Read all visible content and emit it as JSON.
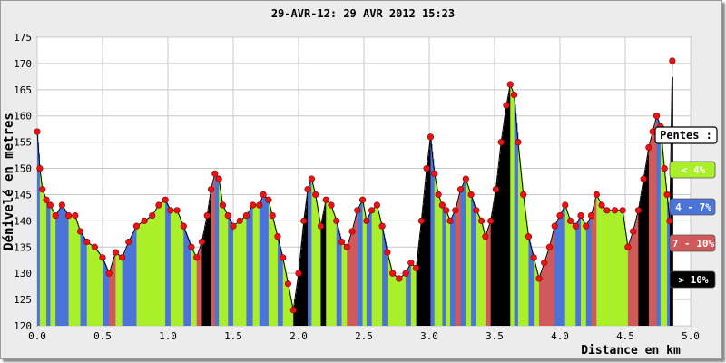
{
  "chart_data": {
    "type": "area",
    "title": "29-AVR-12: 29 AVR 2012 15:23",
    "xlabel": "Distance en km",
    "ylabel": "Dénivelé en metres",
    "xlim": [
      0,
      5
    ],
    "ylim": [
      120,
      175
    ],
    "x_ticks": [
      "0.0",
      "0.5",
      "1.0",
      "1.5",
      "2.0",
      "2.5",
      "3.0",
      "3.5",
      "4.0",
      "4.5",
      "5.0"
    ],
    "y_ticks": [
      "120",
      "125",
      "130",
      "135",
      "140",
      "145",
      "150",
      "155",
      "160",
      "165",
      "170",
      "175"
    ],
    "grid": true,
    "legend_position": "right",
    "legend": {
      "title": "Pentes :",
      "items": [
        {
          "label": "< 4%",
          "color": "#aaf02a",
          "text_color": "#ffffff"
        },
        {
          "label": "4 - 7%",
          "color": "#4a74d8",
          "text_color": "#ffffff"
        },
        {
          "label": "7 - 10%",
          "color": "#d05a5a",
          "text_color": "#ffffff"
        },
        {
          "label": "> 10%",
          "color": "#000000",
          "text_color": "#ffffff"
        }
      ]
    },
    "marker_color": "#ee1111",
    "profile": [
      [
        0.0,
        157
      ],
      [
        0.02,
        150
      ],
      [
        0.04,
        146
      ],
      [
        0.07,
        144
      ],
      [
        0.1,
        143
      ],
      [
        0.14,
        141
      ],
      [
        0.19,
        143
      ],
      [
        0.24,
        141
      ],
      [
        0.29,
        141
      ],
      [
        0.33,
        138
      ],
      [
        0.38,
        136
      ],
      [
        0.44,
        135
      ],
      [
        0.5,
        133
      ],
      [
        0.55,
        130
      ],
      [
        0.6,
        134
      ],
      [
        0.65,
        133
      ],
      [
        0.7,
        136
      ],
      [
        0.76,
        139
      ],
      [
        0.82,
        140
      ],
      [
        0.88,
        141
      ],
      [
        0.93,
        143
      ],
      [
        0.98,
        144
      ],
      [
        1.02,
        142
      ],
      [
        1.07,
        142
      ],
      [
        1.12,
        139
      ],
      [
        1.18,
        135
      ],
      [
        1.22,
        133
      ],
      [
        1.26,
        136
      ],
      [
        1.3,
        141
      ],
      [
        1.33,
        146
      ],
      [
        1.36,
        149
      ],
      [
        1.39,
        148
      ],
      [
        1.42,
        143
      ],
      [
        1.46,
        141
      ],
      [
        1.5,
        139
      ],
      [
        1.55,
        140
      ],
      [
        1.6,
        141
      ],
      [
        1.65,
        143
      ],
      [
        1.7,
        143
      ],
      [
        1.73,
        145
      ],
      [
        1.77,
        144
      ],
      [
        1.8,
        141
      ],
      [
        1.84,
        137
      ],
      [
        1.88,
        133
      ],
      [
        1.92,
        128
      ],
      [
        1.96,
        123
      ],
      [
        2.0,
        130
      ],
      [
        2.04,
        140
      ],
      [
        2.07,
        146
      ],
      [
        2.1,
        148
      ],
      [
        2.13,
        145
      ],
      [
        2.17,
        139
      ],
      [
        2.21,
        144
      ],
      [
        2.25,
        143
      ],
      [
        2.29,
        140
      ],
      [
        2.33,
        136
      ],
      [
        2.37,
        135
      ],
      [
        2.41,
        138
      ],
      [
        2.45,
        142
      ],
      [
        2.49,
        144
      ],
      [
        2.52,
        140
      ],
      [
        2.56,
        142
      ],
      [
        2.6,
        143
      ],
      [
        2.64,
        139
      ],
      [
        2.68,
        134
      ],
      [
        2.72,
        130
      ],
      [
        2.77,
        129
      ],
      [
        2.82,
        130
      ],
      [
        2.86,
        132
      ],
      [
        2.9,
        131
      ],
      [
        2.94,
        140
      ],
      [
        2.98,
        150
      ],
      [
        3.01,
        156
      ],
      [
        3.04,
        149
      ],
      [
        3.07,
        145
      ],
      [
        3.1,
        143
      ],
      [
        3.13,
        142
      ],
      [
        3.16,
        140
      ],
      [
        3.2,
        142
      ],
      [
        3.24,
        146
      ],
      [
        3.28,
        148
      ],
      [
        3.32,
        145
      ],
      [
        3.36,
        142
      ],
      [
        3.4,
        140
      ],
      [
        3.43,
        137
      ],
      [
        3.47,
        140
      ],
      [
        3.51,
        146
      ],
      [
        3.55,
        155
      ],
      [
        3.59,
        162
      ],
      [
        3.62,
        166
      ],
      [
        3.65,
        164
      ],
      [
        3.68,
        155
      ],
      [
        3.72,
        145
      ],
      [
        3.76,
        137
      ],
      [
        3.8,
        133
      ],
      [
        3.84,
        129
      ],
      [
        3.88,
        132
      ],
      [
        3.92,
        135
      ],
      [
        3.96,
        139
      ],
      [
        4.0,
        141
      ],
      [
        4.04,
        143
      ],
      [
        4.08,
        140
      ],
      [
        4.12,
        139
      ],
      [
        4.16,
        141
      ],
      [
        4.2,
        139
      ],
      [
        4.24,
        141
      ],
      [
        4.28,
        145
      ],
      [
        4.32,
        143
      ],
      [
        4.36,
        142
      ],
      [
        4.42,
        142
      ],
      [
        4.48,
        142
      ],
      [
        4.52,
        135
      ],
      [
        4.56,
        138
      ],
      [
        4.6,
        142
      ],
      [
        4.64,
        148
      ],
      [
        4.68,
        154
      ],
      [
        4.71,
        157
      ],
      [
        4.74,
        160
      ],
      [
        4.77,
        158
      ],
      [
        4.8,
        150
      ],
      [
        4.82,
        145
      ],
      [
        4.84,
        140
      ],
      [
        4.86,
        170.5
      ]
    ],
    "segment_slopes": [
      "<4",
      "4-7",
      "<4",
      ">10",
      "4-7",
      "<4",
      "7-10",
      "<4",
      "4-7",
      ">10",
      "<4",
      "4-7"
    ]
  }
}
